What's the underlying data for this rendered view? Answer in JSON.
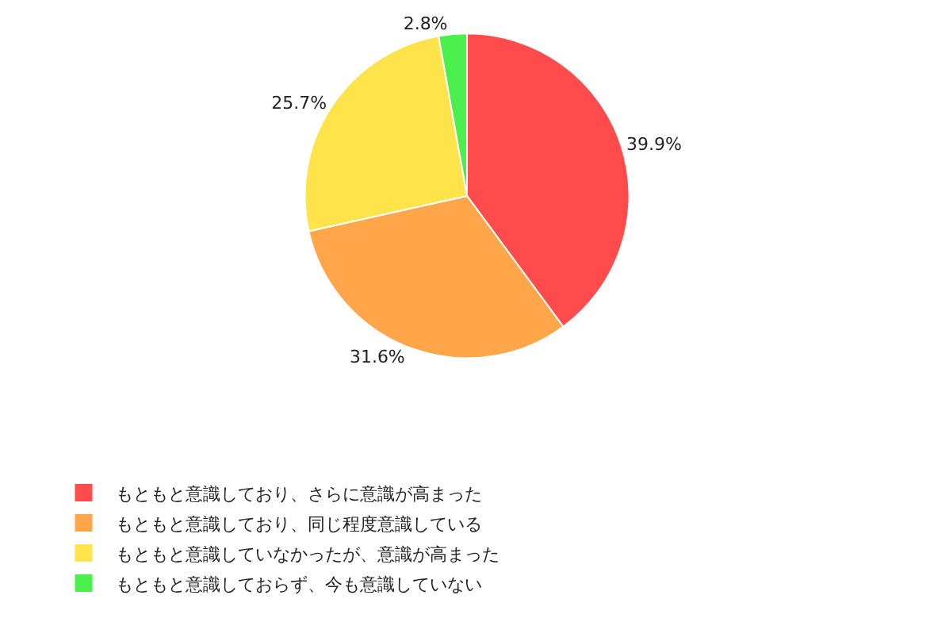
{
  "chart_data": {
    "type": "pie",
    "categories": [
      "もともと意識しており、さらに意識が高まった",
      "もともと意識しており、同じ程度意識している",
      "もともと意識していなかったが、意識が高まった",
      "もともと意識しておらず、今も意識していない"
    ],
    "values": [
      39.9,
      31.6,
      25.7,
      2.8
    ],
    "colors": [
      "#ff4b4b",
      "#ffa64b",
      "#ffe34b",
      "#4bef4b"
    ],
    "value_labels": [
      "39.9%",
      "31.6%",
      "25.7%",
      "2.8%"
    ],
    "legend": "bottom left"
  }
}
